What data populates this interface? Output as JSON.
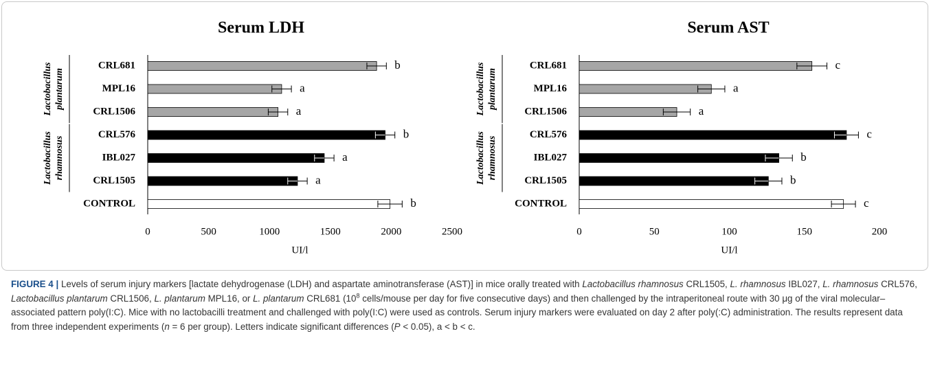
{
  "chart_data": [
    {
      "type": "bar",
      "orientation": "horizontal",
      "title": "Serum LDH",
      "categories": [
        "CRL681",
        "MPL16",
        "CRL1506",
        "CRL576",
        "IBL027",
        "CRL1505",
        "CONTROL"
      ],
      "values": [
        1880,
        1100,
        1070,
        1950,
        1450,
        1230,
        1990
      ],
      "errors": [
        80,
        80,
        80,
        80,
        80,
        80,
        100
      ],
      "annotations": [
        "b",
        "a",
        "a",
        "b",
        "a",
        "a",
        "b"
      ],
      "colors": [
        "#a6a6a6",
        "#a6a6a6",
        "#a6a6a6",
        "#000000",
        "#000000",
        "#000000",
        "#ffffff"
      ],
      "groups": [
        {
          "label": [
            "Lactobacillus",
            "plantarum"
          ]
        },
        {
          "label": [
            "Lactobacillus",
            "rhamnosus"
          ]
        }
      ],
      "xlabel": "UI/l",
      "xlim": [
        0,
        2500
      ],
      "xticks": [
        0,
        500,
        1000,
        1500,
        2000,
        2500
      ]
    },
    {
      "type": "bar",
      "orientation": "horizontal",
      "title": "Serum AST",
      "categories": [
        "CRL681",
        "MPL16",
        "CRL1506",
        "CRL576",
        "IBL027",
        "CRL1505",
        "CONTROL"
      ],
      "values": [
        155,
        88,
        65,
        178,
        133,
        126,
        176
      ],
      "errors": [
        10,
        9,
        9,
        8,
        9,
        9,
        8
      ],
      "annotations": [
        "c",
        "a",
        "a",
        "c",
        "b",
        "b",
        "c"
      ],
      "colors": [
        "#a6a6a6",
        "#a6a6a6",
        "#a6a6a6",
        "#000000",
        "#000000",
        "#000000",
        "#ffffff"
      ],
      "groups": [
        {
          "label": [
            "Lactobacillus",
            "plantarum"
          ]
        },
        {
          "label": [
            "Lactobacillus",
            "rhamnosus"
          ]
        }
      ],
      "xlabel": "UI/l",
      "xlim": [
        0,
        200
      ],
      "xticks": [
        0,
        50,
        100,
        150,
        200
      ]
    }
  ],
  "caption": [
    "FIGURE 4 |",
    " Levels of serum injury markers [lactate dehydrogenase (LDH) and aspartate aminotransferase (AST)] in mice orally treated with ",
    "Lactobacillus rhamnosus",
    " CRL1505, ",
    "L. rhamnosus",
    " IBL027, ",
    "L. rhamnosus",
    " CRL576, ",
    "Lactobacillus plantarum",
    " CRL1506, ",
    "L. plantarum",
    " MPL16, or ",
    "L. plantarum",
    " CRL681 (10",
    "8",
    " cells/mouse per day for five consecutive days) and then challenged by the intraperitoneal route with 30 μg of the viral molecular–associated pattern poly(I:C). Mice with no lactobacilli treatment and challenged with poly(I:C) were used as controls. Serum injury markers were evaluated on day 2 after poly(:C) administration. The results represent data from three independent experiments (",
    "n",
    " = 6 per group). Letters indicate significant differences (",
    "P",
    " < 0.05), a < b < c."
  ]
}
